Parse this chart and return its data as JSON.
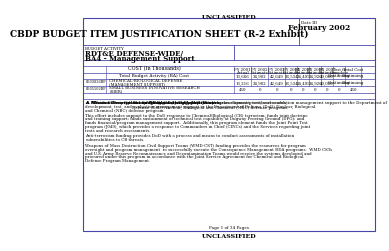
{
  "top_label": "UNCLASSIFIED",
  "bottom_label": "UNCLASSIFIED",
  "title": "CBDP BUDGET ITEM JUSTIFICATION SHEET (R-2 Exhibit)",
  "date_label": "Date ID",
  "date_value": "February 2002",
  "budget_activity_label": "BUDGET ACTIVITY",
  "budget_activity": "RDT&E DEFENSE-WIDE/",
  "budget_activity2": "BA4 - Management Support",
  "table_header": "COST (In Thousands)",
  "col_headers": [
    "FY 2001\nActual",
    "FY 2002\nEstimate",
    "FY 2003\nEstimate",
    "FY 2004\nEstimate",
    "FY 2005\nEstimate",
    "FY 2006\nEstimate",
    "FY 2007\nEstimate",
    "Cost to\nComplete",
    "Total Cost"
  ],
  "row1_label": "Total Budget Activity (BA) Cost",
  "row1_values": [
    "13,666",
    "34,902",
    "42,649",
    "36,534",
    "34,495",
    "34,920",
    "40,000",
    "Continuing",
    "Continuing"
  ],
  "row2_pe": "0603826BP",
  "row2_label": "CHEMICAL-BIOLOGICAL DEFENSE\n(MANAGEMENT SUPPORT)",
  "row2_values": [
    "13,216",
    "34,902",
    "42,649",
    "36,534",
    "34,495",
    "34,920",
    "40,000",
    "Continuing",
    "Continuing"
  ],
  "row3_pe": "0605502BP",
  "row3_label": "SMALL BUSINESS INNOVATIVE RESEARCH\n(SBIR)",
  "row3_values": [
    "450",
    "0",
    "0",
    "0",
    "0",
    "0",
    "0",
    "0",
    "450"
  ],
  "section_a_title": "A. Mission Description and Budget Activity Justification:",
  "section_a_text": " This program element provides research, development, test, and evaluation management support to the Department of Defense (DoD) Nuclear, Biological and Chemical (NBC) defense program.",
  "para1": "This effort includes support to the DoD response to Chemical/Biological (CB) terrorism; funds joint doctrine and training support; funds sustainment of technical test capability at Dugway Proving Ground (DPG); and funds financial/program management support.  Additionally, this program element funds the Joint Point Test program (J049), which provides a response to Commanders in Chief (CINCs) and the Services regarding joint tests and research assessments.",
  "para2": "Anti-terrorism funding provides DoD with a process and means to conduct assessments of installation vulnerabilities to CB threats.",
  "para3": "Weapons of Mass Destruction Civil Support Teams (WMD-CST) funding provides the resources for program oversight and program management  to successfully execute the Consequence Management RDA programs.  WMD CSTs and U.S. Army Reserve Reconnaissance and Decontamination Teams would receive the systems developed and procured under this program in accordance with the Joint Service Agreement for Chemical and Biological Defense Program Management.",
  "page_label": "Page 1 of 34 Pages",
  "border_color": "#4444aa",
  "bg_color": "#ffffff",
  "text_color": "#000000"
}
